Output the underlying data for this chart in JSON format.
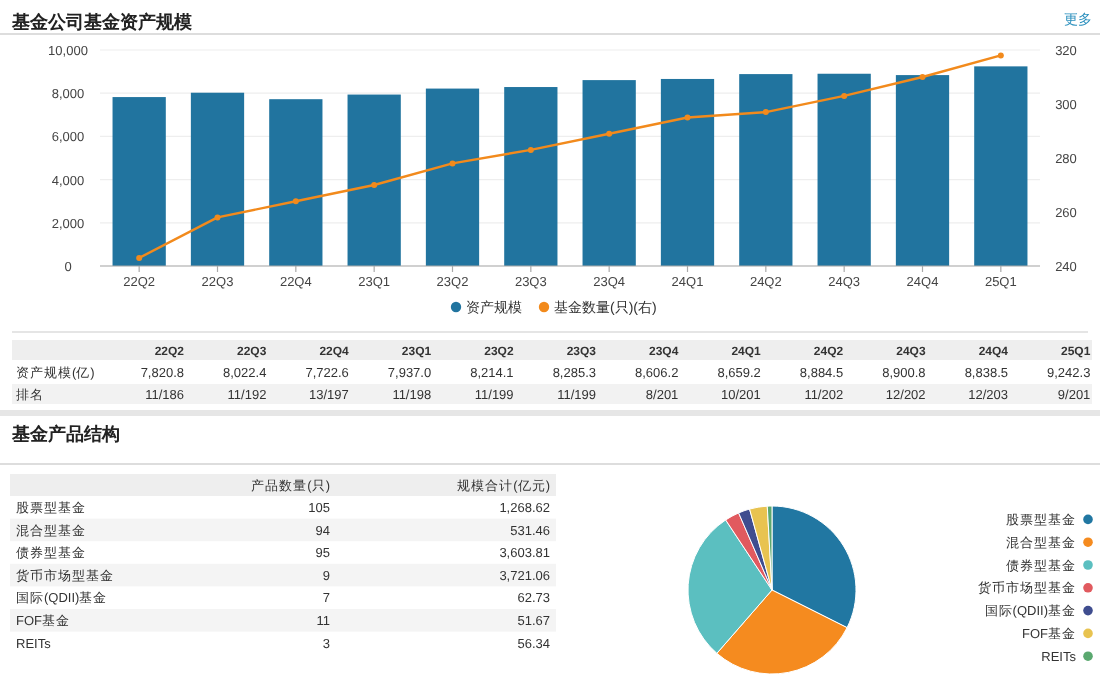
{
  "chart_data": [
    {
      "type": "bar",
      "title": "基金公司基金资产规模",
      "categories": [
        "22Q2",
        "22Q3",
        "22Q4",
        "23Q1",
        "23Q2",
        "23Q3",
        "23Q4",
        "24Q1",
        "24Q2",
        "24Q3",
        "24Q4",
        "25Q1"
      ],
      "series": [
        {
          "name": "资产规模",
          "type": "bar",
          "color": "#21749f",
          "values": [
            7820.8,
            8022.4,
            7722.6,
            7937.0,
            8214.1,
            8285.3,
            8606.2,
            8659.2,
            8884.5,
            8900.8,
            8838.5,
            9242.3
          ]
        },
        {
          "name": "基金数量(只)(右)",
          "type": "line",
          "axis": "y2",
          "color": "#f28a1c",
          "values": [
            243,
            258,
            264,
            270,
            278,
            283,
            289,
            295,
            297,
            303,
            310,
            318
          ]
        }
      ],
      "ylim": [
        0,
        10000
      ],
      "yticks": [
        0,
        {
          "value": 2000,
          "label": "2,000"
        },
        {
          "value": 4000,
          "label": "4,000"
        },
        {
          "value": 6000,
          "label": "6,000"
        },
        {
          "value": 8000,
          "label": "8,000"
        },
        {
          "value": 10000,
          "label": "10,000"
        }
      ],
      "y2lim": [
        240,
        320
      ],
      "y2ticks": [
        240,
        260,
        280,
        300,
        320
      ],
      "grid": "y",
      "legend": "bottom",
      "marker": "circle",
      "annotations": [
        "更多",
        "资产规模(亿)",
        "排名",
        "7,820.8",
        "8,022.4",
        "7,722.6",
        "7,937.0",
        "8,214.1",
        "8,285.3",
        "8,606.2",
        "8,659.2",
        "8,884.5",
        "8,900.8",
        "8,838.5",
        "9,242.3",
        "11/186",
        "11/192",
        "13/197",
        "11/198",
        "11/199",
        "11/199",
        "8/201",
        "10/201",
        "11/202",
        "12/202",
        "12/203",
        "9/201"
      ]
    },
    {
      "type": "pie",
      "categories": [
        "股票型基金",
        "混合型基金",
        "债券型基金",
        "货币市场型基金",
        "国际(QDII)基金",
        "FOF基金",
        "REITs"
      ],
      "values": [
        32.4,
        29.0,
        29.3,
        2.8,
        2.2,
        3.4,
        0.9
      ],
      "colors": [
        "#2177a2",
        "#f58b1f",
        "#5bbfc0",
        "#e15a5f",
        "#3f4d8f",
        "#e8c350",
        "#5aa86f"
      ],
      "legend": "right",
      "annotations": [
        "基金产品结构",
        "产品数量(只)",
        "规模合计(亿元)",
        "105",
        "94",
        "95",
        "9",
        "7",
        "11",
        "3",
        "1,268.62",
        "531.46",
        "3,603.81",
        "3,721.06",
        "62.73",
        "51.67",
        "56.34"
      ]
    }
  ]
}
